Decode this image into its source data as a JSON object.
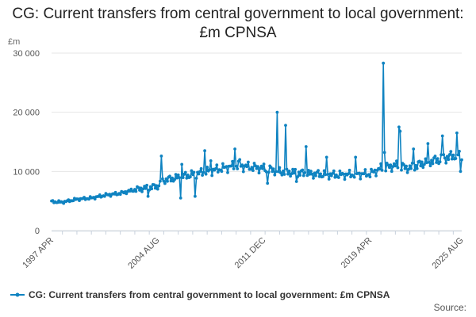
{
  "title": "CG: Current transfers from central government to local government: £m CPNSA",
  "unit": "£m",
  "legend_label": "CG: Current transfers from central government to local government: £m CPNSA",
  "source_label": "Source:",
  "colors": {
    "series": "#0f83c1",
    "grid": "#e6e6e6",
    "axis": "#c8d1dc"
  },
  "chart_data": {
    "type": "line",
    "title": "CG: Current transfers from central government to local government: £m CPNSA",
    "ylabel": "£m",
    "xlabel": "",
    "ylim": [
      0,
      30000
    ],
    "y_ticks": [
      0,
      10000,
      20000,
      30000
    ],
    "y_tick_labels": [
      "0",
      "10 000",
      "20 000",
      "30 000"
    ],
    "x_tick_labels": [
      "1997 APR",
      "2004 AUG",
      "2011 DEC",
      "2019 APR",
      "2025 AUG"
    ],
    "frequency": "monthly",
    "x_start": "1997 APR",
    "x_end": "2025 AUG",
    "grid": true,
    "legend_position": "bottom-left",
    "markers": true,
    "series": [
      {
        "name": "CG: Current transfers from central government to local government: £m CPNSA",
        "anchors": [
          [
            "1997 APR",
            4900
          ],
          [
            "1998 JAN",
            4800
          ],
          [
            "1999 JAN",
            5300
          ],
          [
            "2000 JAN",
            5500
          ],
          [
            "2001 JAN",
            6000
          ],
          [
            "2002 JAN",
            6300
          ],
          [
            "2003 JAN",
            6900
          ],
          [
            "2004 AUG",
            7500
          ],
          [
            "2005 JAN",
            8500
          ],
          [
            "2006 JAN",
            9000
          ],
          [
            "2007 JAN",
            9500
          ],
          [
            "2008 JAN",
            10000
          ],
          [
            "2009 JAN",
            10500
          ],
          [
            "2010 JAN",
            11000
          ],
          [
            "2011 DEC",
            10500
          ],
          [
            "2013 JAN",
            10000
          ],
          [
            "2014 JAN",
            9800
          ],
          [
            "2015 JAN",
            9600
          ],
          [
            "2016 JAN",
            9500
          ],
          [
            "2017 JAN",
            9400
          ],
          [
            "2018 JAN",
            9500
          ],
          [
            "2019 APR",
            9600
          ],
          [
            "2020 JAN",
            10500
          ],
          [
            "2021 JAN",
            11000
          ],
          [
            "2022 JAN",
            10500
          ],
          [
            "2023 JAN",
            11500
          ],
          [
            "2024 JAN",
            12000
          ],
          [
            "2025 AUG",
            13000
          ]
        ],
        "spikes": [
          [
            "2012 NOV",
            20000
          ],
          [
            "2013 JUN",
            17800
          ],
          [
            "2014 NOV",
            14200
          ],
          [
            "2009 DEC",
            13800
          ],
          [
            "2007 NOV",
            13500
          ],
          [
            "2020 MAR",
            28300
          ],
          [
            "2020 APR",
            13200
          ],
          [
            "2021 APR",
            17500
          ],
          [
            "2021 MAY",
            16800
          ],
          [
            "2022 APR",
            13800
          ],
          [
            "2023 APR",
            14700
          ],
          [
            "2024 APR",
            16000
          ],
          [
            "2025 APR",
            16500
          ],
          [
            "2004 NOV",
            12600
          ],
          [
            "2006 APR",
            11200
          ],
          [
            "2008 APR",
            11800
          ],
          [
            "2010 APR",
            12000
          ],
          [
            "2016 APR",
            12400
          ],
          [
            "2018 APR",
            12400
          ],
          [
            "2006 MAR",
            5500
          ],
          [
            "2003 DEC",
            5800
          ],
          [
            "2007 MAR",
            5800
          ],
          [
            "2012 MAR",
            8000
          ],
          [
            "2014 MAR",
            8300
          ],
          [
            "2025 JUL",
            10000
          ]
        ]
      }
    ]
  }
}
